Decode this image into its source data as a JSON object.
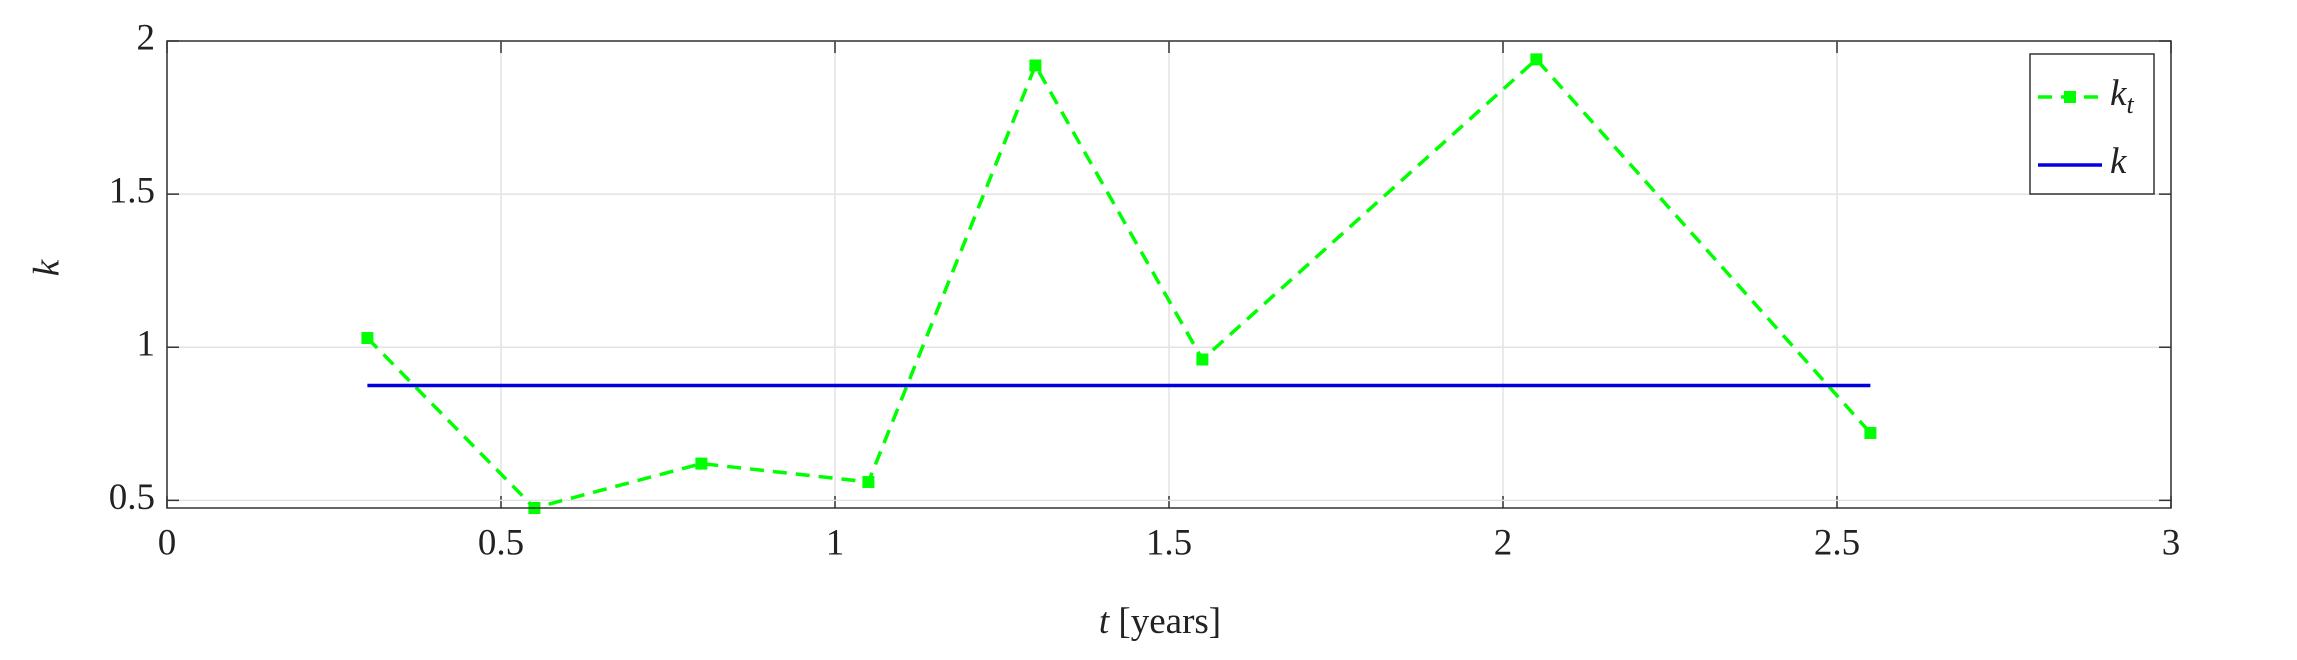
{
  "chart_data": {
    "type": "line",
    "xlabel_symbol": "t",
    "xlabel_unit": "[years]",
    "ylabel": "k",
    "xlim": [
      0,
      3
    ],
    "xticks": [
      0,
      0.5,
      1,
      1.5,
      2,
      2.5,
      3
    ],
    "ylim": [
      0.475,
      2
    ],
    "yticks": [
      0.5,
      1,
      1.5,
      2
    ],
    "grid": true,
    "legend": "upper right",
    "series": [
      {
        "name": "k",
        "subscript": "t",
        "color": "#00ff00",
        "style": "dashed",
        "marker": "square",
        "x": [
          0.3,
          0.55,
          0.8,
          1.05,
          1.3,
          1.55,
          2.05,
          2.55
        ],
        "values": [
          1.03,
          0.475,
          0.62,
          0.56,
          1.92,
          0.96,
          1.94,
          0.72
        ]
      },
      {
        "name": "k",
        "color": "#0000e0",
        "style": "solid",
        "x": [
          0.3,
          2.55
        ],
        "values": [
          0.875,
          0.875
        ]
      }
    ]
  }
}
